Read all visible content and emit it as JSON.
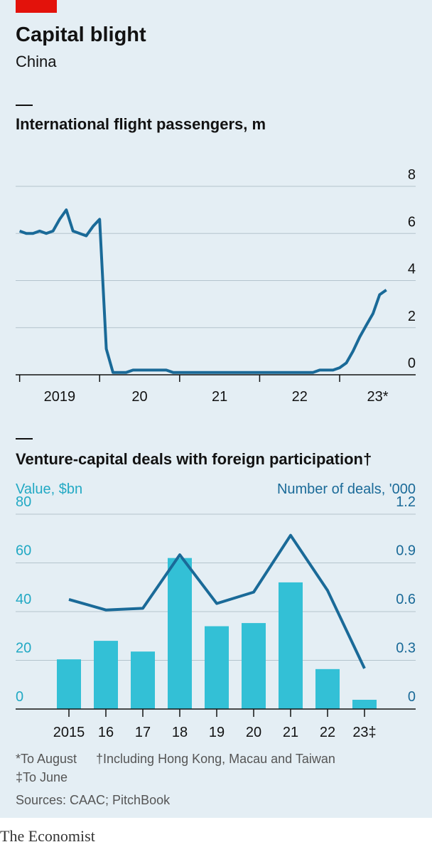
{
  "header": {
    "title": "Capital blight",
    "subtitle": "China"
  },
  "chart_data": [
    {
      "type": "line",
      "title": "International flight passengers, m",
      "color": "#1a6a98",
      "x": [
        2019,
        2019.083,
        2019.167,
        2019.25,
        2019.333,
        2019.417,
        2019.5,
        2019.583,
        2019.667,
        2019.75,
        2019.833,
        2019.917,
        2020,
        2020.083,
        2020.167,
        2020.25,
        2020.333,
        2020.417,
        2020.5,
        2020.583,
        2020.667,
        2020.75,
        2020.833,
        2020.917,
        2021,
        2021.083,
        2021.167,
        2021.25,
        2021.333,
        2021.417,
        2021.5,
        2021.583,
        2021.667,
        2021.75,
        2021.833,
        2021.917,
        2022,
        2022.083,
        2022.167,
        2022.25,
        2022.333,
        2022.417,
        2022.5,
        2022.583,
        2022.667,
        2022.75,
        2022.833,
        2022.917,
        2023,
        2023.083,
        2023.167,
        2023.25,
        2023.333,
        2023.417,
        2023.5,
        2023.583
      ],
      "values": [
        6.1,
        6.0,
        6.0,
        6.1,
        6.0,
        6.1,
        6.6,
        7.0,
        6.1,
        6.0,
        5.9,
        6.3,
        6.6,
        1.1,
        0.1,
        0.1,
        0.1,
        0.2,
        0.2,
        0.2,
        0.2,
        0.2,
        0.2,
        0.1,
        0.1,
        0.1,
        0.1,
        0.1,
        0.1,
        0.1,
        0.1,
        0.1,
        0.1,
        0.1,
        0.1,
        0.1,
        0.1,
        0.1,
        0.1,
        0.1,
        0.1,
        0.1,
        0.1,
        0.1,
        0.1,
        0.2,
        0.2,
        0.2,
        0.3,
        0.5,
        1.0,
        1.6,
        2.1,
        2.6,
        3.4,
        3.6
      ],
      "xlim": [
        2018.95,
        2023.95
      ],
      "xticks": [
        {
          "value": 2019,
          "label": "2019"
        },
        {
          "value": 2020,
          "label": "20"
        },
        {
          "value": 2021,
          "label": "21"
        },
        {
          "value": 2022,
          "label": "22"
        },
        {
          "value": 2023,
          "label": "23*"
        }
      ],
      "ylim": [
        0,
        8
      ],
      "yticks": [
        0,
        2,
        4,
        6,
        8
      ],
      "grid": true
    },
    {
      "type": "combo",
      "title": "Venture-capital deals with foreign participation†",
      "categories": [
        "2015",
        "16",
        "17",
        "18",
        "19",
        "20",
        "21",
        "22",
        "23‡"
      ],
      "series": [
        {
          "name": "Value, $bn",
          "type": "bar",
          "color": "#33c0d6",
          "values": [
            20.4,
            28,
            23.6,
            62,
            34,
            35.3,
            52,
            16.4,
            3.8
          ]
        },
        {
          "name": "Number of deals, '000",
          "type": "line",
          "axis": "y2",
          "color": "#1a6a98",
          "values": [
            0.675,
            0.61,
            0.62,
            0.95,
            0.65,
            0.72,
            1.07,
            0.73,
            0.25
          ]
        }
      ],
      "ylim": [
        0,
        80
      ],
      "yticks": [
        0,
        20,
        40,
        60,
        80
      ],
      "y2lim": [
        0,
        1.2
      ],
      "y2ticks": [
        0,
        0.3,
        0.6,
        0.9,
        1.2
      ],
      "grid": true
    }
  ],
  "notes": [
    "*To August",
    "†Including Hong Kong, Macau and Taiwan",
    "‡To June"
  ],
  "source": "Sources: CAAC; PitchBook",
  "brand": "The Economist"
}
